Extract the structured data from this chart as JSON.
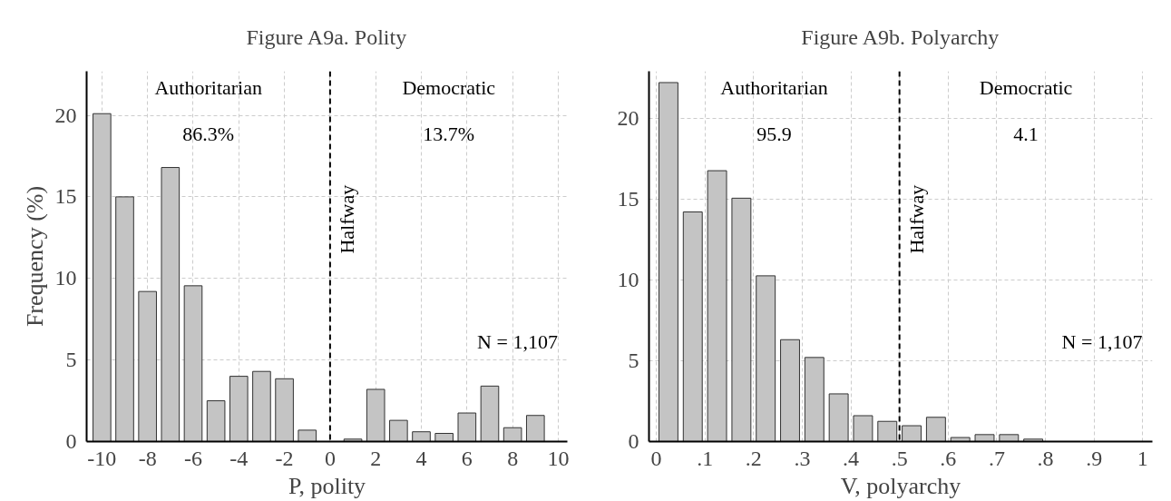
{
  "chart_data": [
    {
      "type": "bar",
      "title": "Figure A9a. Polity",
      "xlabel": "P, polity",
      "ylabel": "Frequency (%)",
      "x": [
        -10,
        -9,
        -8,
        -7,
        -6,
        -5,
        -4,
        -3,
        -2,
        -1,
        1,
        2,
        3,
        4,
        5,
        6,
        7,
        8,
        9
      ],
      "values": [
        20.1,
        15.0,
        9.2,
        16.8,
        9.55,
        2.5,
        4.0,
        4.3,
        3.85,
        0.7,
        0.15,
        3.2,
        1.3,
        0.6,
        0.5,
        1.75,
        3.4,
        0.85,
        1.6
      ],
      "color": "#c4c4c4",
      "xlim": [
        -10.67,
        10.4
      ],
      "ylim": [
        0,
        22.7
      ],
      "xticks": [
        -10,
        -8,
        -6,
        -4,
        -2,
        0,
        2,
        4,
        6,
        8,
        10
      ],
      "yticks": [
        0,
        5,
        10,
        15,
        20
      ],
      "grid": true,
      "ref_lines": [
        {
          "axis": "x",
          "value": 0,
          "label": "Halfway",
          "color": "#000000",
          "line_style": "dashed"
        }
      ],
      "annotations": [
        "Authoritarian",
        "86.3%",
        "Democratic",
        "13.7%",
        "N = 1,107"
      ]
    },
    {
      "type": "histogram",
      "title": "Figure A9b. Polyarchy",
      "xlabel": "V, polyarchy",
      "bins": [
        0,
        0.05,
        0.1,
        0.15,
        0.2,
        0.25,
        0.3,
        0.35,
        0.4,
        0.45,
        0.5,
        0.55,
        0.6,
        0.65,
        0.7,
        0.75,
        0.8
      ],
      "values": [
        22.2,
        14.2,
        16.75,
        15.05,
        10.25,
        6.3,
        5.2,
        2.95,
        1.6,
        1.25,
        0.98,
        1.5,
        0.25,
        0.43,
        0.43,
        0.15
      ],
      "color": "#c4c4c4",
      "xlim": [
        -0.015,
        1.02
      ],
      "ylim": [
        0,
        22.9
      ],
      "xticks": [
        0,
        {
          "value": 0.1,
          "label": ".1"
        },
        {
          "value": 0.2,
          "label": ".2"
        },
        {
          "value": 0.3,
          "label": ".3"
        },
        {
          "value": 0.4,
          "label": ".4"
        },
        {
          "value": 0.5,
          "label": ".5"
        },
        {
          "value": 0.6,
          "label": ".6"
        },
        {
          "value": 0.7,
          "label": ".7"
        },
        {
          "value": 0.8,
          "label": ".8"
        },
        {
          "value": 0.9,
          "label": ".9"
        },
        1
      ],
      "yticks": [
        0,
        5,
        10,
        15,
        20
      ],
      "grid": true,
      "ref_lines": [
        {
          "axis": "x",
          "value": 0.5,
          "label": "Halfway",
          "color": "#000000",
          "line_style": "dashed"
        }
      ],
      "annotations": [
        "Authoritarian",
        "95.9",
        "Democratic",
        "4.1",
        "N = 1,107"
      ]
    }
  ]
}
